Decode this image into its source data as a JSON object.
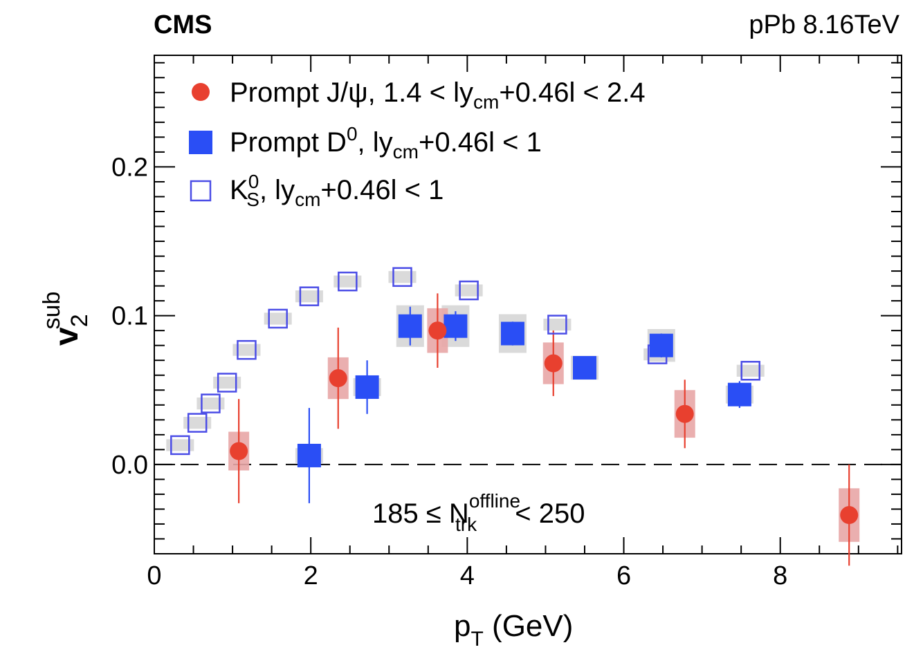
{
  "header": {
    "experiment": "CMS",
    "collision": "pPb 8.16TeV"
  },
  "chart_data": {
    "type": "scatter",
    "xlabel": {
      "main": "p",
      "sub": "T",
      "rest": " (GeV)"
    },
    "ylabel": {
      "main": "v",
      "sub": "2",
      "sup": "sub"
    },
    "xlim": [
      0,
      9.55
    ],
    "ylim": [
      -0.06,
      0.275
    ],
    "xticks": [
      "0",
      "2",
      "4",
      "6",
      "8"
    ],
    "xtick_values": [
      0,
      2,
      4,
      6,
      8
    ],
    "yticks": [
      "0.0",
      "0.1",
      "0.2"
    ],
    "ytick_values": [
      0,
      0.1,
      0.2
    ],
    "zero_line": "dashed",
    "legend_position": "top-left",
    "annotation": {
      "pre": "185 ≤ N",
      "sup": "offline",
      "sub": "trk",
      "post": " < 250"
    },
    "series": [
      {
        "name": "Prompt J/ψ, 1.4 < |ycm+0.46| < 2.4",
        "legend": {
          "a": "Prompt J/ψ, 1.4 < ly",
          "sub": "cm",
          "b": "+0.46l < 2.4"
        },
        "marker": "filled-circle",
        "color": "#e8402f",
        "syst_color": "#e8a6a6",
        "points": [
          {
            "x": 1.08,
            "y": 0.009,
            "stat": 0.035,
            "syst": 0.013
          },
          {
            "x": 2.35,
            "y": 0.058,
            "stat": 0.034,
            "syst": 0.014
          },
          {
            "x": 3.62,
            "y": 0.09,
            "stat": 0.025,
            "syst": 0.015
          },
          {
            "x": 5.1,
            "y": 0.068,
            "stat": 0.022,
            "syst": 0.014
          },
          {
            "x": 6.78,
            "y": 0.034,
            "stat": 0.023,
            "syst": 0.016
          },
          {
            "x": 8.88,
            "y": -0.034,
            "stat": 0.034,
            "syst": 0.018
          }
        ]
      },
      {
        "name": "Prompt D0, |ycm+0.46| < 1",
        "legend": {
          "a": "Prompt D",
          "sup": "0",
          "b": ", ly",
          "sub": "cm",
          "c": "+0.46l < 1"
        },
        "marker": "filled-square",
        "color": "#2a4ef5",
        "syst_color": "#d6d6d6",
        "points": [
          {
            "x": 1.98,
            "y": 0.006,
            "stat": 0.032,
            "syst": 0.005
          },
          {
            "x": 2.72,
            "y": 0.052,
            "stat": 0.018,
            "syst": 0.006
          },
          {
            "x": 3.27,
            "y": 0.093,
            "stat": 0.013,
            "syst": 0.014
          },
          {
            "x": 3.85,
            "y": 0.093,
            "stat": 0.01,
            "syst": 0.014
          },
          {
            "x": 4.58,
            "y": 0.088,
            "stat": 0.008,
            "syst": 0.013
          },
          {
            "x": 5.5,
            "y": 0.065,
            "stat": 0.007,
            "syst": 0.008
          },
          {
            "x": 6.48,
            "y": 0.08,
            "stat": 0.008,
            "syst": 0.011
          },
          {
            "x": 7.48,
            "y": 0.047,
            "stat": 0.009,
            "syst": 0.006
          }
        ]
      },
      {
        "name": "KS0, |ycm+0.46| < 1",
        "legend": {
          "a": "K",
          "sup": "0",
          "sub1": "S",
          "b": ", ly",
          "sub": "cm",
          "c": "+0.46l < 1"
        },
        "marker": "open-square",
        "color": "#4b4de6",
        "syst_color": "#d6d6d6",
        "points": [
          {
            "x": 0.33,
            "y": 0.013,
            "syst": 0.004
          },
          {
            "x": 0.55,
            "y": 0.028,
            "syst": 0.004
          },
          {
            "x": 0.72,
            "y": 0.041,
            "syst": 0.004
          },
          {
            "x": 0.93,
            "y": 0.055,
            "syst": 0.004
          },
          {
            "x": 1.18,
            "y": 0.077,
            "syst": 0.004
          },
          {
            "x": 1.58,
            "y": 0.098,
            "syst": 0.004
          },
          {
            "x": 1.98,
            "y": 0.113,
            "syst": 0.004
          },
          {
            "x": 2.47,
            "y": 0.123,
            "syst": 0.004
          },
          {
            "x": 3.17,
            "y": 0.126,
            "syst": 0.004
          },
          {
            "x": 4.02,
            "y": 0.117,
            "syst": 0.004
          },
          {
            "x": 5.15,
            "y": 0.094,
            "syst": 0.004
          },
          {
            "x": 6.43,
            "y": 0.074,
            "syst": 0.004
          },
          {
            "x": 7.62,
            "y": 0.063,
            "syst": 0.004
          }
        ]
      }
    ]
  }
}
